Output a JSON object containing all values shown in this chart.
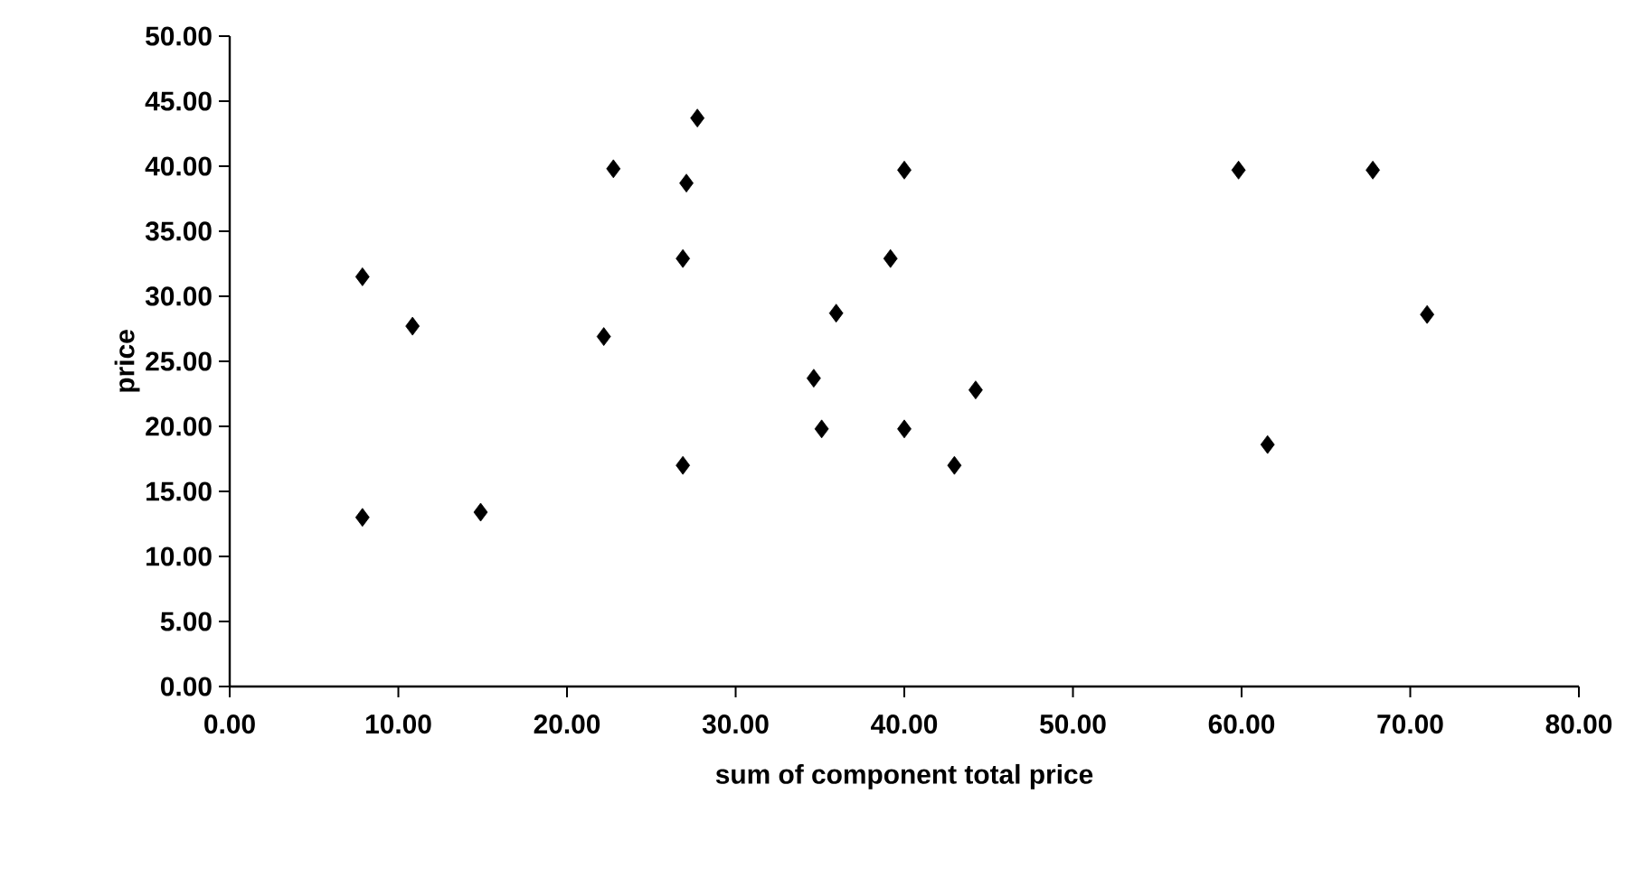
{
  "chart_data": {
    "type": "scatter",
    "xlabel": "sum of component total price",
    "ylabel": "price",
    "x": [
      7.87,
      7.87,
      10.84,
      14.88,
      22.18,
      22.75,
      27.73,
      27.08,
      26.87,
      26.87,
      35.96,
      34.63,
      35.1,
      39.18,
      40.0,
      40.0,
      44.23,
      42.97,
      59.82,
      67.78,
      71.0,
      61.54
    ],
    "values": [
      31.5,
      13.0,
      27.7,
      13.4,
      26.9,
      39.8,
      43.7,
      38.7,
      32.9,
      17.0,
      28.7,
      23.7,
      19.8,
      32.9,
      39.7,
      19.8,
      22.8,
      17.0,
      39.7,
      39.7,
      28.6,
      18.6
    ],
    "color": "#000000",
    "marker": "diamond",
    "xlim": [
      0,
      80
    ],
    "ylim": [
      0,
      50
    ],
    "xticks": [
      {
        "value": 0,
        "label": "0.00"
      },
      {
        "value": 10,
        "label": "10.00"
      },
      {
        "value": 20,
        "label": "20.00"
      },
      {
        "value": 30,
        "label": "30.00"
      },
      {
        "value": 40,
        "label": "40.00"
      },
      {
        "value": 50,
        "label": "50.00"
      },
      {
        "value": 60,
        "label": "60.00"
      },
      {
        "value": 70,
        "label": "70.00"
      },
      {
        "value": 80,
        "label": "80.00"
      }
    ],
    "yticks": [
      {
        "value": 0,
        "label": "0.00"
      },
      {
        "value": 5,
        "label": "5.00"
      },
      {
        "value": 10,
        "label": "10.00"
      },
      {
        "value": 15,
        "label": "15.00"
      },
      {
        "value": 20,
        "label": "20.00"
      },
      {
        "value": 25,
        "label": "25.00"
      },
      {
        "value": 30,
        "label": "30.00"
      },
      {
        "value": 35,
        "label": "35.00"
      },
      {
        "value": 40,
        "label": "40.00"
      },
      {
        "value": 45,
        "label": "45.00"
      },
      {
        "value": 50,
        "label": "50.00"
      }
    ]
  }
}
